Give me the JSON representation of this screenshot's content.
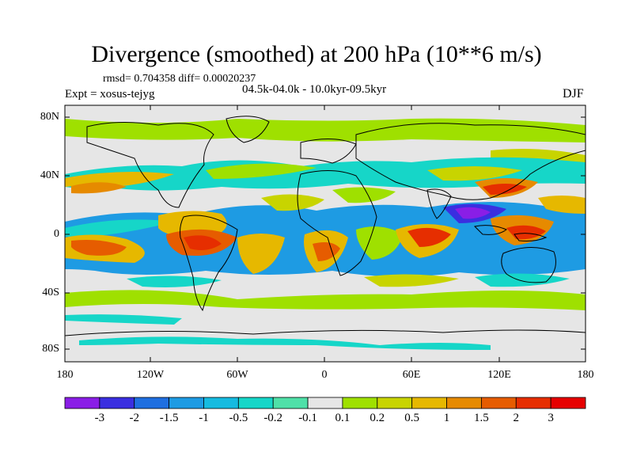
{
  "title": "Divergence (smoothed) at 200 hPa (10**6 m/s)",
  "stats": "rmsd= 0.704358 diff= 0.00020237",
  "experiment": "Expt = xosus-tejyg",
  "period": "04.5k-04.0k - 10.0kyr-09.5kyr",
  "season": "DJF",
  "y_ticks": [
    "80N",
    "40N",
    "0",
    "40S",
    "80S"
  ],
  "x_ticks": [
    "180",
    "120W",
    "60W",
    "0",
    "60E",
    "120E",
    "180"
  ],
  "colorbar": {
    "labels": [
      "-3",
      "-2",
      "-1.5",
      "-1",
      "-0.5",
      "-0.2",
      "-0.1",
      "0.1",
      "0.2",
      "0.5",
      "1",
      "1.5",
      "2",
      "3"
    ],
    "colors": [
      "#8a1ee6",
      "#3a2fe0",
      "#1f6fe0",
      "#1e9be3",
      "#16bbe0",
      "#16d6c8",
      "#4fe0a8",
      "#e6e6e6",
      "#9fe000",
      "#c8d400",
      "#e6b800",
      "#e68a00",
      "#e65c00",
      "#e62e00",
      "#e60000"
    ]
  }
}
